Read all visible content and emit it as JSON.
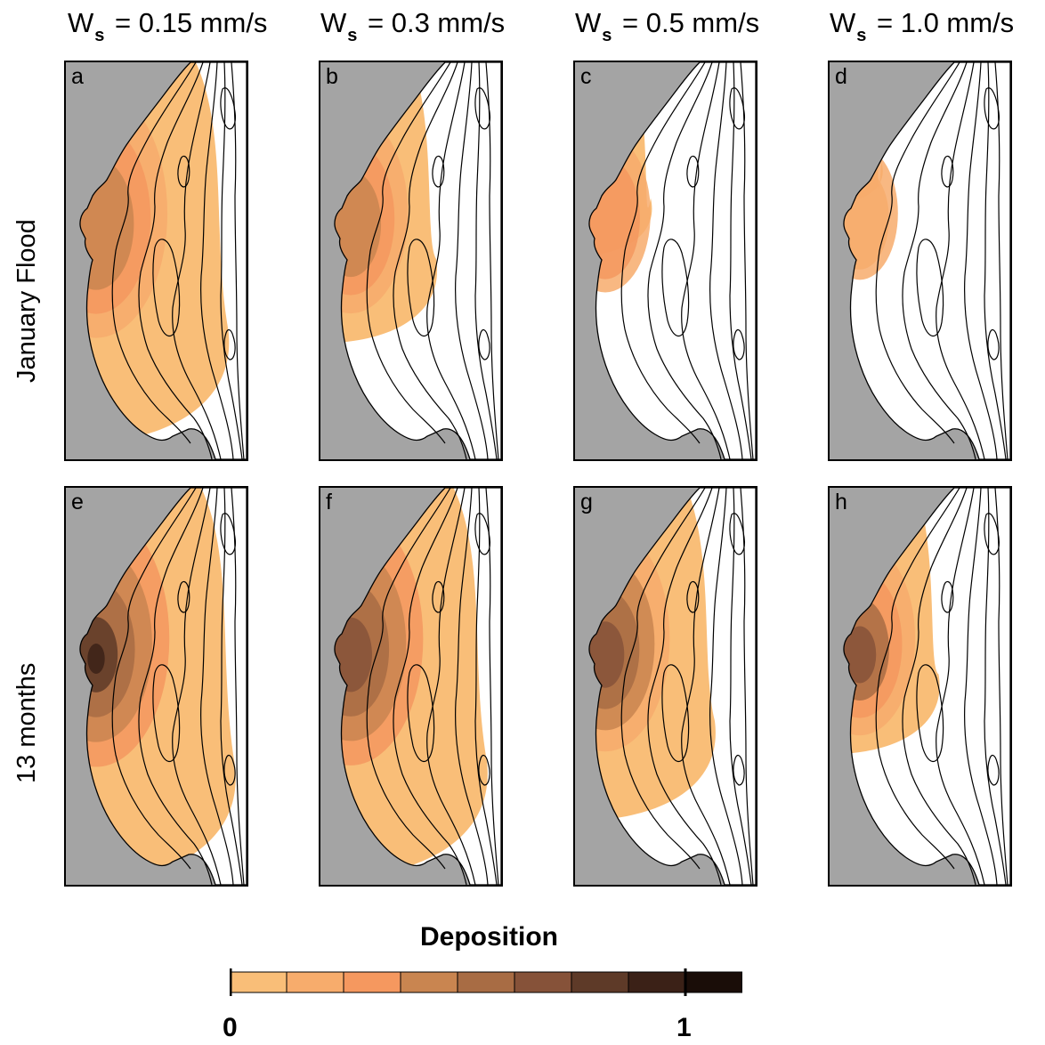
{
  "columns": [
    {
      "symbol": "W",
      "subscript": "s",
      "value": " = 0.15 mm/s"
    },
    {
      "symbol": "W",
      "subscript": "s",
      "value": " = 0.3 mm/s"
    },
    {
      "symbol": "W",
      "subscript": "s",
      "value": " = 0.5 mm/s"
    },
    {
      "symbol": "W",
      "subscript": "s",
      "value": " = 1.0 mm/s"
    }
  ],
  "rows": [
    "January Flood",
    "13 months"
  ],
  "panels": [
    {
      "label": "a",
      "deposit_extent": 0.95,
      "intensity": 0.65
    },
    {
      "label": "b",
      "deposit_extent": 0.6,
      "intensity": 0.55
    },
    {
      "label": "c",
      "deposit_extent": 0.3,
      "intensity": 0.45
    },
    {
      "label": "d",
      "deposit_extent": 0.12,
      "intensity": 0.4
    },
    {
      "label": "e",
      "deposit_extent": 1.0,
      "intensity": 0.85
    },
    {
      "label": "f",
      "deposit_extent": 0.98,
      "intensity": 0.8
    },
    {
      "label": "g",
      "deposit_extent": 0.78,
      "intensity": 0.75
    },
    {
      "label": "h",
      "deposit_extent": 0.55,
      "intensity": 0.7
    }
  ],
  "legend": {
    "title": "Deposition",
    "ticks": [
      "0",
      "1"
    ],
    "colors": [
      "#f9be78",
      "#f7ac6c",
      "#f5985f",
      "#c98550",
      "#a86c44",
      "#865239",
      "#5e3a28",
      "#3b2117",
      "#1a0d08"
    ]
  },
  "land_color": "#a4a4a4",
  "water_color": "#ffffff"
}
